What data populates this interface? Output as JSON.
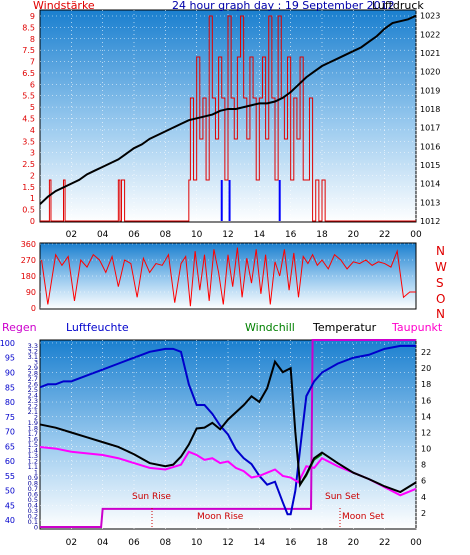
{
  "header": {
    "windstaerke": "Windstärke",
    "title": "24 hour graph day : 19 September 2012",
    "luftdruck": "Luftdruck"
  },
  "direction_letters": [
    "N",
    "W",
    "S",
    "O",
    "N"
  ],
  "bottom_labels": {
    "regen": "Regen",
    "luftfeuchte": "Luftfeuchte",
    "windchill": "Windchill",
    "temperatur": "Temperatur",
    "taupunkt": "Taupunkt"
  },
  "annotations": {
    "sun_rise": "Sun Rise",
    "moon_rise": "Moon Rise",
    "sun_set": "Sun Set",
    "moon_set": "Moon Set"
  },
  "colors": {
    "windstaerke": "#e00000",
    "luftdruck": "#000000",
    "direction": "#ff0000",
    "regen": "#cc00cc",
    "luftfeuchte": "#0000cc",
    "windchill": "#008000",
    "temperatur": "#000000",
    "taupunkt": "#ff00ff",
    "gust_blue": "#0000ff"
  },
  "chart_data": [
    {
      "type": "line",
      "name": "wind-pressure",
      "x_ticks": [
        "02",
        "04",
        "06",
        "08",
        "10",
        "12",
        "14",
        "16",
        "18",
        "20",
        "22",
        "00"
      ],
      "x_range": [
        0,
        24
      ],
      "left_axis": {
        "title": "Windstärke",
        "ticks": [
          "0",
          "0.5",
          "1",
          "1.5",
          "2",
          "2.5",
          "3",
          "3.5",
          "4",
          "4.5",
          "5",
          "5.5",
          "6",
          "6.5",
          "7",
          "7.5",
          "8",
          "8.5",
          "9"
        ],
        "range": [
          0,
          9
        ]
      },
      "right_axis": {
        "title": "Luftdruck",
        "ticks": [
          "1012",
          "1013",
          "1014",
          "1015",
          "1016",
          "1017",
          "1018",
          "1019",
          "1020",
          "1021",
          "1022",
          "1023"
        ],
        "range": [
          1012,
          1023.3
        ]
      },
      "pressure_series": {
        "x": [
          0.0,
          0.5,
          1,
          1.5,
          2,
          2.5,
          3,
          3.5,
          4,
          4.5,
          5,
          5.5,
          6,
          6.5,
          7,
          7.5,
          8,
          8.5,
          9,
          9.5,
          10,
          10.5,
          11,
          11.5,
          12,
          12.5,
          13,
          13.5,
          14,
          14.5,
          15,
          15.5,
          16,
          16.5,
          17,
          17.5,
          18,
          18.5,
          19,
          19.5,
          20,
          20.5,
          21,
          21.5,
          22,
          22.5,
          23,
          23.5,
          24
        ],
        "y": [
          1012.9,
          1013.3,
          1013.6,
          1013.8,
          1014.0,
          1014.2,
          1014.5,
          1014.7,
          1014.9,
          1015.1,
          1015.3,
          1015.6,
          1015.9,
          1016.1,
          1016.4,
          1016.6,
          1016.8,
          1017.0,
          1017.2,
          1017.4,
          1017.5,
          1017.6,
          1017.7,
          1017.9,
          1018.0,
          1018.0,
          1018.1,
          1018.2,
          1018.3,
          1018.3,
          1018.4,
          1018.6,
          1018.9,
          1019.3,
          1019.7,
          1020.0,
          1020.3,
          1020.5,
          1020.7,
          1020.9,
          1021.1,
          1021.3,
          1021.6,
          1021.9,
          1022.3,
          1022.6,
          1022.7,
          1022.8,
          1023.0
        ]
      },
      "wind_series": {
        "x": [
          0.0,
          0.6,
          0.7,
          1.5,
          1.6,
          5.0,
          5.1,
          5.2,
          5.4,
          5.5,
          9.5,
          9.6,
          9.8,
          10.0,
          10.2,
          10.4,
          10.6,
          10.8,
          11.0,
          11.2,
          11.4,
          11.6,
          11.8,
          12.0,
          12.2,
          12.4,
          12.6,
          12.8,
          13.0,
          13.2,
          13.4,
          13.6,
          13.8,
          14.0,
          14.2,
          14.4,
          14.6,
          14.8,
          15.0,
          15.2,
          15.4,
          15.6,
          15.8,
          16.0,
          16.2,
          16.4,
          16.6,
          16.8,
          17.0,
          17.2,
          17.4,
          17.6,
          17.8,
          18.0,
          18.2,
          18.4,
          24
        ],
        "y": [
          0,
          1.8,
          0,
          1.8,
          0,
          1.8,
          0,
          1.8,
          0,
          0,
          1.8,
          5.4,
          1.8,
          7.2,
          3.6,
          5.4,
          1.8,
          9.0,
          5.4,
          3.6,
          7.2,
          5.4,
          1.8,
          9.0,
          5.4,
          3.6,
          7.2,
          9.0,
          5.4,
          3.6,
          7.2,
          5.4,
          1.8,
          5.4,
          7.2,
          3.6,
          9.0,
          5.4,
          1.8,
          9.0,
          5.4,
          3.6,
          7.2,
          1.8,
          5.4,
          3.6,
          7.2,
          1.8,
          1.8,
          5.4,
          0,
          1.8,
          0,
          1.8,
          0,
          0,
          0
        ]
      },
      "gust_bars_blue": [
        {
          "x": 11.6,
          "y": 1.8
        },
        {
          "x": 12.1,
          "y": 1.8
        },
        {
          "x": 15.3,
          "y": 1.8
        }
      ]
    },
    {
      "type": "line",
      "name": "wind-direction",
      "left_axis": {
        "ticks": [
          "0",
          "90",
          "180",
          "270",
          "360"
        ],
        "range": [
          0,
          360
        ]
      },
      "direction_series": {
        "x": [
          0.1,
          0.5,
          1.0,
          1.4,
          1.8,
          2.2,
          2.6,
          3.0,
          3.4,
          3.8,
          4.2,
          4.6,
          5.0,
          5.4,
          5.8,
          6.2,
          6.6,
          7.0,
          7.4,
          7.8,
          8.2,
          8.6,
          9.0,
          9.3,
          9.6,
          9.9,
          10.2,
          10.5,
          10.8,
          11.1,
          11.4,
          11.7,
          12.0,
          12.3,
          12.6,
          12.9,
          13.2,
          13.5,
          13.8,
          14.1,
          14.4,
          14.7,
          15.0,
          15.3,
          15.6,
          15.9,
          16.2,
          16.5,
          16.8,
          17.1,
          17.4,
          17.7,
          18.0,
          18.4,
          18.8,
          19.2,
          19.6,
          20.0,
          20.4,
          20.8,
          21.2,
          21.6,
          22.0,
          22.4,
          22.8,
          23.2,
          23.6,
          24.0
        ],
        "y": [
          270,
          20,
          300,
          240,
          290,
          40,
          270,
          230,
          300,
          270,
          200,
          290,
          120,
          270,
          250,
          60,
          280,
          200,
          250,
          240,
          300,
          30,
          250,
          290,
          10,
          320,
          100,
          300,
          40,
          330,
          200,
          20,
          300,
          120,
          340,
          60,
          280,
          140,
          330,
          80,
          300,
          20,
          260,
          180,
          330,
          100,
          310,
          60,
          290,
          250,
          300,
          240,
          270,
          220,
          300,
          270,
          220,
          260,
          250,
          270,
          240,
          260,
          250,
          230,
          320,
          60,
          90,
          90
        ]
      }
    },
    {
      "type": "line",
      "name": "humidity-temperature",
      "left_axis_rain": {
        "title": "Regen",
        "ticks": [
          "0",
          "0.1",
          "0.2",
          "0.3",
          "0.4",
          "0.5",
          "0.6",
          "0.7",
          "0.8",
          "0.9",
          "1",
          "1.1",
          "1.2",
          "1.3",
          "1.4",
          "1.5",
          "1.6",
          "1.7",
          "1.8",
          "1.9",
          "2",
          "2.1",
          "2.2",
          "2.3",
          "2.4",
          "2.5",
          "2.6",
          "2.7",
          "2.8",
          "2.9",
          "3",
          "3.1",
          "3.2",
          "3.3"
        ],
        "range": [
          0,
          3.4
        ]
      },
      "left_axis_humidity": {
        "title": "Luftfeuchte",
        "ticks": [
          "40",
          "45",
          "50",
          "55",
          "60",
          "65",
          "70",
          "75",
          "80",
          "85",
          "90",
          "95",
          "100"
        ],
        "range": [
          37,
          101
        ]
      },
      "right_axis_temp": {
        "ticks": [
          "2",
          "4",
          "6",
          "8",
          "10",
          "12",
          "14",
          "16",
          "18",
          "20",
          "22"
        ],
        "range": [
          0,
          23.5
        ]
      },
      "rain_series": {
        "x": [
          0,
          3.9,
          4.0,
          17.3,
          17.4,
          24
        ],
        "y": [
          0,
          0,
          0.33,
          0.33,
          3.4,
          3.4
        ]
      },
      "humidity_series": {
        "x": [
          0,
          0.5,
          1,
          1.5,
          2,
          3,
          4,
          5,
          6,
          6.5,
          7,
          7.5,
          8,
          8.5,
          9,
          9.5,
          10,
          10.5,
          11,
          11.5,
          12,
          12.5,
          13,
          13.5,
          14,
          14.5,
          15,
          15.5,
          15.8,
          16.0,
          16.3,
          16.6,
          17.0,
          17.5,
          18.0,
          19,
          20,
          21,
          22,
          23,
          24
        ],
        "y": [
          85,
          86,
          86,
          87,
          87,
          89,
          91,
          93,
          95,
          96,
          97,
          97.5,
          98,
          98,
          97,
          86,
          79,
          79,
          76,
          72,
          69,
          64,
          61,
          59,
          55,
          52,
          53,
          46,
          42,
          42,
          50,
          64,
          82,
          87,
          90,
          93,
          95,
          96,
          98,
          99,
          99
        ]
      },
      "temperature_series": {
        "x": [
          0,
          1,
          2,
          3,
          4,
          5,
          6,
          7,
          8,
          8.5,
          9,
          9.5,
          10,
          10.5,
          11,
          11.5,
          12,
          12.5,
          13,
          13.5,
          14,
          14.5,
          15,
          15.5,
          16,
          16.3,
          16.6,
          17,
          17.5,
          18,
          19,
          20,
          21,
          22,
          23,
          24
        ],
        "y": [
          13.0,
          12.6,
          12.0,
          11.4,
          10.8,
          10.2,
          9.3,
          8.2,
          7.8,
          8.0,
          9.0,
          10.5,
          12.5,
          12.6,
          13.2,
          12.4,
          13.6,
          14.5,
          15.4,
          16.5,
          15.8,
          17.5,
          20.8,
          19.5,
          20.0,
          12.0,
          5.5,
          6.8,
          8.8,
          9.5,
          8.2,
          7.0,
          6.2,
          5.3,
          4.6,
          5.8
        ]
      },
      "dewpoint_series": {
        "x": [
          0,
          1,
          2,
          3,
          4,
          5,
          6,
          7,
          8,
          9,
          9.5,
          10,
          10.5,
          11,
          11.5,
          12,
          12.5,
          13,
          13.5,
          14,
          14.5,
          15,
          15.5,
          16,
          16.5,
          17,
          17.5,
          18,
          19,
          20,
          21,
          22,
          23,
          24
        ],
        "y": [
          10.2,
          10.0,
          9.6,
          9.4,
          9.2,
          8.8,
          8.2,
          7.6,
          7.4,
          8.0,
          9.6,
          9.2,
          8.6,
          8.8,
          8.2,
          8.4,
          7.6,
          7.2,
          6.4,
          6.6,
          7.0,
          7.4,
          6.6,
          6.4,
          5.8,
          7.8,
          7.6,
          8.8,
          7.8,
          7.0,
          6.2,
          5.2,
          4.2,
          5.0
        ]
      },
      "windchill_series": {
        "x": [
          16.6,
          17,
          17.5,
          18
        ],
        "y": [
          5.5,
          6.6,
          8.6,
          9.3
        ]
      }
    }
  ]
}
